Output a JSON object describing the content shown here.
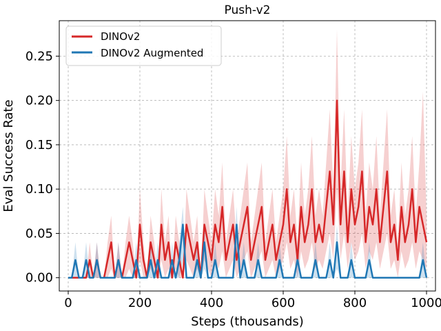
{
  "chart_data": {
    "type": "line",
    "title": "Push-v2",
    "xlabel": "Steps (thousands)",
    "ylabel": "Eval Success Rate",
    "xlim": [
      -25,
      1025
    ],
    "ylim": [
      -0.015,
      0.29
    ],
    "xticks": [
      0,
      200,
      400,
      600,
      800,
      1000
    ],
    "yticks": [
      0.0,
      0.05,
      0.1,
      0.15,
      0.2,
      0.25
    ],
    "xtick_labels": [
      "0",
      "200",
      "400",
      "600",
      "800",
      "1000"
    ],
    "ytick_labels": [
      "0.00",
      "0.05",
      "0.10",
      "0.15",
      "0.20",
      "0.25"
    ],
    "grid": true,
    "legend_position": "top-left",
    "series": [
      {
        "name": "DINOv2",
        "color": "#d62728",
        "band_color": "#d62728",
        "x": [
          0,
          10,
          20,
          30,
          40,
          50,
          60,
          70,
          80,
          90,
          100,
          110,
          120,
          130,
          140,
          150,
          160,
          170,
          180,
          190,
          200,
          210,
          220,
          230,
          240,
          250,
          260,
          270,
          280,
          290,
          300,
          310,
          320,
          330,
          340,
          350,
          360,
          370,
          380,
          390,
          400,
          410,
          420,
          430,
          440,
          450,
          460,
          470,
          480,
          490,
          500,
          510,
          520,
          530,
          540,
          550,
          560,
          570,
          580,
          590,
          600,
          610,
          620,
          630,
          640,
          650,
          660,
          670,
          680,
          690,
          700,
          710,
          720,
          730,
          740,
          750,
          760,
          770,
          780,
          790,
          800,
          810,
          820,
          830,
          840,
          850,
          860,
          870,
          880,
          890,
          900,
          910,
          920,
          930,
          940,
          950,
          960,
          970,
          980,
          990,
          1000
        ],
        "values": [
          0.0,
          0.0,
          0.0,
          0.0,
          0.0,
          0.0,
          0.02,
          0.0,
          0.02,
          0.0,
          0.0,
          0.02,
          0.04,
          0.0,
          0.02,
          0.0,
          0.02,
          0.04,
          0.02,
          0.0,
          0.06,
          0.02,
          0.0,
          0.04,
          0.02,
          0.0,
          0.06,
          0.02,
          0.04,
          0.0,
          0.04,
          0.02,
          0.0,
          0.06,
          0.04,
          0.02,
          0.04,
          0.0,
          0.06,
          0.04,
          0.02,
          0.06,
          0.04,
          0.08,
          0.02,
          0.04,
          0.06,
          0.02,
          0.04,
          0.06,
          0.08,
          0.02,
          0.04,
          0.06,
          0.08,
          0.02,
          0.04,
          0.06,
          0.02,
          0.04,
          0.06,
          0.1,
          0.04,
          0.06,
          0.02,
          0.08,
          0.04,
          0.06,
          0.1,
          0.04,
          0.06,
          0.04,
          0.08,
          0.12,
          0.06,
          0.2,
          0.06,
          0.12,
          0.04,
          0.1,
          0.06,
          0.08,
          0.12,
          0.04,
          0.08,
          0.06,
          0.1,
          0.04,
          0.08,
          0.12,
          0.04,
          0.06,
          0.02,
          0.08,
          0.04,
          0.06,
          0.1,
          0.04,
          0.08,
          0.06,
          0.04
        ],
        "lower": [
          0.0,
          0.0,
          0.0,
          0.0,
          0.0,
          0.0,
          0.0,
          0.0,
          0.0,
          0.0,
          0.0,
          0.0,
          0.01,
          0.0,
          0.0,
          0.0,
          0.0,
          0.01,
          0.0,
          0.0,
          0.02,
          0.0,
          0.0,
          0.01,
          0.0,
          0.0,
          0.02,
          0.0,
          0.01,
          0.0,
          0.01,
          0.0,
          0.0,
          0.02,
          0.01,
          0.0,
          0.01,
          0.0,
          0.02,
          0.01,
          0.0,
          0.02,
          0.01,
          0.03,
          0.0,
          0.01,
          0.02,
          0.0,
          0.01,
          0.02,
          0.03,
          0.0,
          0.01,
          0.02,
          0.03,
          0.0,
          0.01,
          0.02,
          0.0,
          0.01,
          0.02,
          0.04,
          0.01,
          0.02,
          0.0,
          0.03,
          0.01,
          0.02,
          0.04,
          0.01,
          0.02,
          0.01,
          0.03,
          0.05,
          0.02,
          0.1,
          0.02,
          0.05,
          0.01,
          0.04,
          0.02,
          0.03,
          0.05,
          0.01,
          0.03,
          0.02,
          0.04,
          0.01,
          0.03,
          0.05,
          0.01,
          0.02,
          0.0,
          0.03,
          0.01,
          0.02,
          0.04,
          0.01,
          0.03,
          0.02,
          0.01
        ],
        "upper": [
          0.0,
          0.0,
          0.0,
          0.0,
          0.0,
          0.0,
          0.04,
          0.0,
          0.04,
          0.0,
          0.0,
          0.04,
          0.07,
          0.0,
          0.04,
          0.0,
          0.04,
          0.07,
          0.04,
          0.0,
          0.1,
          0.04,
          0.0,
          0.07,
          0.04,
          0.0,
          0.1,
          0.04,
          0.07,
          0.0,
          0.07,
          0.04,
          0.0,
          0.1,
          0.07,
          0.04,
          0.07,
          0.0,
          0.1,
          0.07,
          0.04,
          0.1,
          0.07,
          0.13,
          0.04,
          0.07,
          0.1,
          0.04,
          0.07,
          0.1,
          0.13,
          0.04,
          0.07,
          0.1,
          0.13,
          0.04,
          0.07,
          0.1,
          0.04,
          0.07,
          0.1,
          0.16,
          0.07,
          0.1,
          0.04,
          0.13,
          0.07,
          0.1,
          0.16,
          0.07,
          0.1,
          0.07,
          0.13,
          0.19,
          0.1,
          0.28,
          0.1,
          0.19,
          0.07,
          0.16,
          0.1,
          0.13,
          0.19,
          0.07,
          0.13,
          0.1,
          0.16,
          0.07,
          0.13,
          0.19,
          0.07,
          0.1,
          0.04,
          0.13,
          0.07,
          0.1,
          0.16,
          0.07,
          0.13,
          0.21,
          0.07
        ]
      },
      {
        "name": "DINOv2 Augmented",
        "color": "#1f77b4",
        "band_color": "#1f77b4",
        "x": [
          0,
          10,
          20,
          30,
          40,
          50,
          60,
          70,
          80,
          90,
          100,
          110,
          120,
          130,
          140,
          150,
          160,
          170,
          180,
          190,
          200,
          210,
          220,
          230,
          240,
          250,
          260,
          270,
          280,
          290,
          300,
          310,
          320,
          330,
          340,
          350,
          360,
          370,
          380,
          390,
          400,
          410,
          420,
          430,
          440,
          450,
          460,
          470,
          480,
          490,
          500,
          510,
          520,
          530,
          540,
          550,
          560,
          570,
          580,
          590,
          600,
          610,
          620,
          630,
          640,
          650,
          660,
          670,
          680,
          690,
          700,
          710,
          720,
          730,
          740,
          750,
          760,
          770,
          780,
          790,
          800,
          810,
          820,
          830,
          840,
          850,
          860,
          870,
          880,
          890,
          900,
          910,
          920,
          930,
          940,
          950,
          960,
          970,
          980,
          990,
          1000
        ],
        "values": [
          0.0,
          0.0,
          0.02,
          0.0,
          0.0,
          0.02,
          0.0,
          0.0,
          0.02,
          0.0,
          0.0,
          0.0,
          0.0,
          0.0,
          0.02,
          0.0,
          0.0,
          0.0,
          0.0,
          0.02,
          0.0,
          0.0,
          0.0,
          0.02,
          0.0,
          0.02,
          0.0,
          0.0,
          0.0,
          0.02,
          0.0,
          0.02,
          0.06,
          0.0,
          0.0,
          0.0,
          0.02,
          0.0,
          0.04,
          0.0,
          0.0,
          0.02,
          0.0,
          0.0,
          0.0,
          0.0,
          0.0,
          0.06,
          0.0,
          0.02,
          0.0,
          0.0,
          0.0,
          0.02,
          0.0,
          0.0,
          0.0,
          0.0,
          0.0,
          0.02,
          0.0,
          0.0,
          0.0,
          0.0,
          0.02,
          0.0,
          0.0,
          0.0,
          0.0,
          0.02,
          0.0,
          0.0,
          0.0,
          0.02,
          0.0,
          0.04,
          0.0,
          0.0,
          0.0,
          0.02,
          0.0,
          0.0,
          0.0,
          0.0,
          0.02,
          0.0,
          0.0,
          0.0,
          0.0,
          0.0,
          0.0,
          0.0,
          0.0,
          0.0,
          0.0,
          0.0,
          0.0,
          0.0,
          0.0,
          0.02,
          0.0
        ],
        "lower": [
          0.0,
          0.0,
          0.0,
          0.0,
          0.0,
          0.0,
          0.0,
          0.0,
          0.0,
          0.0,
          0.0,
          0.0,
          0.0,
          0.0,
          0.0,
          0.0,
          0.0,
          0.0,
          0.0,
          0.0,
          0.0,
          0.0,
          0.0,
          0.0,
          0.0,
          0.0,
          0.0,
          0.0,
          0.0,
          0.0,
          0.0,
          0.0,
          0.02,
          0.0,
          0.0,
          0.0,
          0.0,
          0.0,
          0.01,
          0.0,
          0.0,
          0.0,
          0.0,
          0.0,
          0.0,
          0.0,
          0.0,
          0.02,
          0.0,
          0.0,
          0.0,
          0.0,
          0.0,
          0.0,
          0.0,
          0.0,
          0.0,
          0.0,
          0.0,
          0.0,
          0.0,
          0.0,
          0.0,
          0.0,
          0.0,
          0.0,
          0.0,
          0.0,
          0.0,
          0.0,
          0.0,
          0.0,
          0.0,
          0.0,
          0.0,
          0.01,
          0.0,
          0.0,
          0.0,
          0.0,
          0.0,
          0.0,
          0.0,
          0.0,
          0.0,
          0.0,
          0.0,
          0.0,
          0.0,
          0.0,
          0.0,
          0.0,
          0.0,
          0.0,
          0.0,
          0.0,
          0.0,
          0.0,
          0.0,
          0.0,
          0.0
        ],
        "upper": [
          0.0,
          0.0,
          0.04,
          0.0,
          0.0,
          0.04,
          0.0,
          0.0,
          0.04,
          0.0,
          0.0,
          0.0,
          0.0,
          0.0,
          0.04,
          0.0,
          0.0,
          0.0,
          0.0,
          0.04,
          0.0,
          0.0,
          0.0,
          0.04,
          0.0,
          0.04,
          0.0,
          0.0,
          0.0,
          0.04,
          0.0,
          0.04,
          0.08,
          0.0,
          0.0,
          0.0,
          0.04,
          0.0,
          0.06,
          0.0,
          0.0,
          0.04,
          0.0,
          0.0,
          0.0,
          0.0,
          0.0,
          0.08,
          0.0,
          0.04,
          0.0,
          0.0,
          0.0,
          0.04,
          0.0,
          0.0,
          0.0,
          0.0,
          0.0,
          0.04,
          0.0,
          0.0,
          0.0,
          0.0,
          0.04,
          0.0,
          0.0,
          0.0,
          0.0,
          0.04,
          0.0,
          0.0,
          0.0,
          0.04,
          0.0,
          0.06,
          0.0,
          0.0,
          0.0,
          0.04,
          0.0,
          0.0,
          0.0,
          0.0,
          0.04,
          0.0,
          0.0,
          0.0,
          0.0,
          0.0,
          0.0,
          0.0,
          0.0,
          0.0,
          0.0,
          0.0,
          0.0,
          0.0,
          0.0,
          0.04,
          0.0
        ]
      }
    ]
  }
}
